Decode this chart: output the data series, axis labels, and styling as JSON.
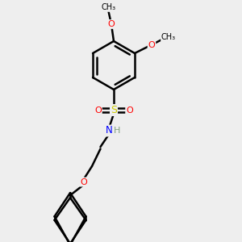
{
  "bg_color": "#eeeeee",
  "atom_colors": {
    "C": "#000000",
    "H": "#7f9f7f",
    "N": "#0000ff",
    "O": "#ff0000",
    "S": "#cccc00"
  },
  "bond_color": "#000000",
  "bond_width": 1.8,
  "figsize": [
    3.0,
    3.0
  ],
  "dpi": 100
}
